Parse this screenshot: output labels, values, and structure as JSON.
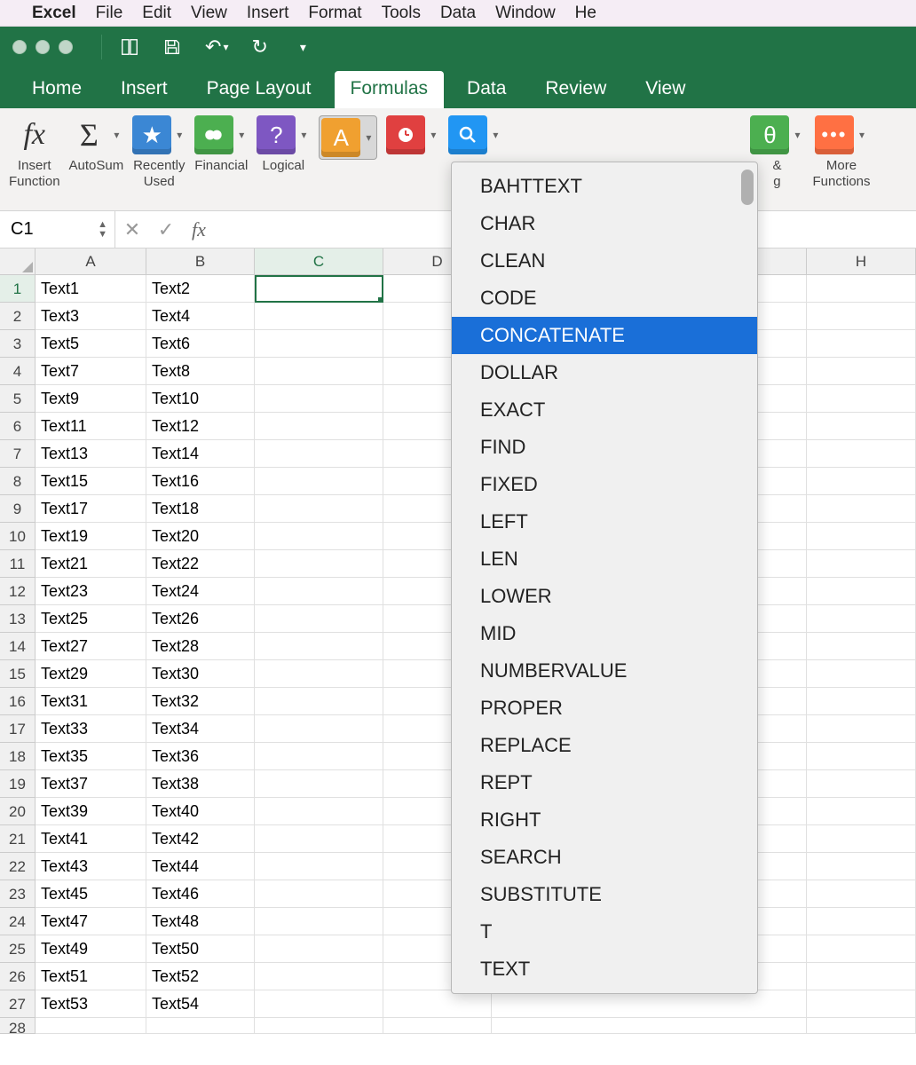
{
  "mac_menu": {
    "app": "Excel",
    "items": [
      "File",
      "Edit",
      "View",
      "Insert",
      "Format",
      "Tools",
      "Data",
      "Window",
      "He"
    ]
  },
  "ribbon_tabs": [
    "Home",
    "Insert",
    "Page Layout",
    "Formulas",
    "Data",
    "Review",
    "View"
  ],
  "active_tab": "Formulas",
  "ribbon_groups": [
    {
      "label": "Insert\nFunction",
      "icon": "fx",
      "color": "transparent"
    },
    {
      "label": "AutoSum",
      "icon": "Σ",
      "color": "transparent",
      "caret": true
    },
    {
      "label": "Recently\nUsed",
      "icon": "★",
      "color": "#3b87d4",
      "caret": true
    },
    {
      "label": "Financial",
      "icon": "$",
      "color": "#4caf50",
      "caret": true
    },
    {
      "label": "Logical",
      "icon": "?",
      "color": "#7e57c2",
      "caret": true
    },
    {
      "label": "",
      "icon": "A",
      "color": "#f0a030",
      "caret": true,
      "pressed": true
    },
    {
      "label": "",
      "icon": "🕐",
      "color": "#e04040",
      "caret": true
    },
    {
      "label": "",
      "icon": "🔍",
      "color": "#2196f3",
      "caret": true
    },
    {
      "label": "&\ng",
      "icon": "θ",
      "color": "#4caf50",
      "caret": true,
      "partial": true
    },
    {
      "label": "More\nFunctions",
      "icon": "⋯",
      "color": "#ff7043",
      "caret": true
    }
  ],
  "dropdown_items": [
    "BAHTTEXT",
    "CHAR",
    "CLEAN",
    "CODE",
    "CONCATENATE",
    "DOLLAR",
    "EXACT",
    "FIND",
    "FIXED",
    "LEFT",
    "LEN",
    "LOWER",
    "MID",
    "NUMBERVALUE",
    "PROPER",
    "REPLACE",
    "REPT",
    "RIGHT",
    "SEARCH",
    "SUBSTITUTE",
    "T",
    "TEXT"
  ],
  "dropdown_selected": "CONCATENATE",
  "namebox": "C1",
  "formula": "",
  "columns": [
    "A",
    "B",
    "C",
    "D",
    "H"
  ],
  "col_widths": {
    "A": 125,
    "B": 122,
    "C": 145,
    "D": 122,
    "H": 112
  },
  "active_col": "C",
  "active_row": 1,
  "rows": 28,
  "cells": {
    "A": [
      "Text1",
      "Text3",
      "Text5",
      "Text7",
      "Text9",
      "Text11",
      "Text13",
      "Text15",
      "Text17",
      "Text19",
      "Text21",
      "Text23",
      "Text25",
      "Text27",
      "Text29",
      "Text31",
      "Text33",
      "Text35",
      "Text37",
      "Text39",
      "Text41",
      "Text43",
      "Text45",
      "Text47",
      "Text49",
      "Text51",
      "Text53",
      ""
    ],
    "B": [
      "Text2",
      "Text4",
      "Text6",
      "Text8",
      "Text10",
      "Text12",
      "Text14",
      "Text16",
      "Text18",
      "Text20",
      "Text22",
      "Text24",
      "Text26",
      "Text28",
      "Text30",
      "Text32",
      "Text34",
      "Text36",
      "Text38",
      "Text40",
      "Text42",
      "Text44",
      "Text46",
      "Text48",
      "Text50",
      "Text52",
      "Text54",
      ""
    ]
  },
  "colors": {
    "excel_green": "#217346",
    "selection": "#1a6fd8"
  }
}
